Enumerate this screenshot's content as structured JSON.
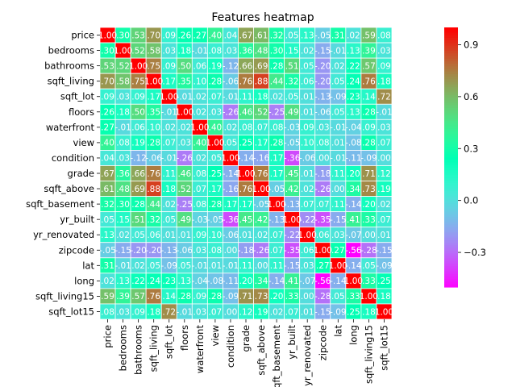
{
  "chart_data": {
    "type": "heatmap",
    "title": "Features heatmap",
    "features": [
      "price",
      "bedrooms",
      "bathrooms",
      "sqft_living",
      "sqft_lot",
      "floors",
      "waterfront",
      "view",
      "condition",
      "grade",
      "sqft_above",
      "sqft_basement",
      "yr_built",
      "yr_renovated",
      "zipcode",
      "lat",
      "long",
      "sqft_living15",
      "sqft_lot15"
    ],
    "matrix": [
      [
        1.0,
        0.3,
        0.53,
        0.7,
        0.09,
        0.26,
        0.27,
        0.4,
        0.04,
        0.67,
        0.61,
        0.32,
        0.05,
        0.13,
        -0.05,
        0.31,
        0.02,
        0.59,
        0.08
      ],
      [
        0.3,
        1.0,
        0.52,
        0.58,
        0.03,
        0.18,
        -0.01,
        0.08,
        0.03,
        0.36,
        0.48,
        0.3,
        0.15,
        0.02,
        -0.15,
        -0.01,
        0.13,
        0.39,
        0.03
      ],
      [
        0.53,
        0.52,
        1.0,
        0.75,
        0.09,
        0.5,
        0.06,
        0.19,
        -0.12,
        0.66,
        0.69,
        0.28,
        0.51,
        0.05,
        -0.2,
        0.02,
        0.22,
        0.57,
        0.09
      ],
      [
        0.7,
        0.58,
        0.75,
        1.0,
        0.17,
        0.35,
        0.1,
        0.28,
        -0.06,
        0.76,
        0.88,
        0.44,
        0.32,
        0.06,
        -0.2,
        0.05,
        0.24,
        0.76,
        0.18
      ],
      [
        0.09,
        0.03,
        0.09,
        0.17,
        1.0,
        -0.01,
        0.02,
        0.07,
        -0.01,
        0.11,
        0.18,
        0.02,
        0.05,
        0.01,
        -0.13,
        -0.09,
        0.23,
        0.14,
        0.72
      ],
      [
        0.26,
        0.18,
        0.5,
        0.35,
        -0.01,
        1.0,
        0.02,
        0.03,
        -0.26,
        0.46,
        0.52,
        -0.25,
        0.49,
        0.01,
        -0.06,
        0.05,
        0.13,
        0.28,
        -0.01
      ],
      [
        0.27,
        -0.01,
        0.06,
        0.1,
        0.02,
        0.02,
        1.0,
        0.4,
        0.02,
        0.08,
        0.07,
        0.08,
        -0.03,
        0.09,
        0.03,
        -0.01,
        -0.04,
        0.09,
        0.03
      ],
      [
        0.4,
        0.08,
        0.19,
        0.28,
        0.07,
        0.03,
        0.4,
        1.0,
        0.05,
        0.25,
        0.17,
        0.28,
        -0.05,
        0.1,
        0.08,
        0.01,
        -0.08,
        0.28,
        0.07
      ],
      [
        0.04,
        0.03,
        -0.12,
        -0.06,
        -0.01,
        -0.26,
        0.02,
        0.05,
        1.0,
        -0.14,
        -0.16,
        0.17,
        -0.36,
        -0.06,
        0.0,
        -0.01,
        -0.11,
        -0.09,
        -0.0
      ],
      [
        0.67,
        0.36,
        0.66,
        0.76,
        0.11,
        0.46,
        0.08,
        0.25,
        -0.14,
        1.0,
        0.76,
        0.17,
        0.45,
        0.01,
        -0.18,
        0.11,
        0.2,
        0.71,
        0.12
      ],
      [
        0.61,
        0.48,
        0.69,
        0.88,
        0.18,
        0.52,
        0.07,
        0.17,
        -0.16,
        0.76,
        1.0,
        -0.05,
        0.42,
        0.02,
        -0.26,
        0.0,
        0.34,
        0.73,
        0.19
      ],
      [
        0.32,
        0.3,
        0.28,
        0.44,
        0.02,
        -0.25,
        0.08,
        0.28,
        0.17,
        0.17,
        -0.05,
        1.0,
        -0.13,
        0.07,
        0.07,
        0.11,
        -0.14,
        0.2,
        0.02
      ],
      [
        0.05,
        0.15,
        0.51,
        0.32,
        0.05,
        0.49,
        -0.03,
        -0.05,
        -0.36,
        0.45,
        0.42,
        -0.13,
        1.0,
        -0.22,
        -0.35,
        -0.15,
        0.41,
        0.33,
        0.07
      ],
      [
        0.13,
        0.02,
        0.05,
        0.06,
        0.01,
        0.01,
        0.09,
        0.1,
        -0.06,
        0.01,
        0.02,
        0.07,
        -0.22,
        1.0,
        0.06,
        0.03,
        -0.07,
        0.0,
        0.01
      ],
      [
        -0.05,
        -0.15,
        -0.2,
        -0.2,
        -0.13,
        -0.06,
        0.03,
        0.08,
        0.0,
        -0.18,
        -0.26,
        0.07,
        -0.35,
        0.06,
        1.0,
        0.27,
        -0.56,
        -0.28,
        -0.15
      ],
      [
        0.31,
        -0.01,
        0.02,
        0.05,
        -0.09,
        0.05,
        -0.01,
        0.01,
        -0.01,
        0.11,
        0.0,
        0.11,
        -0.15,
        0.03,
        0.27,
        1.0,
        -0.14,
        0.05,
        -0.09
      ],
      [
        0.02,
        0.13,
        0.22,
        0.24,
        0.23,
        0.13,
        -0.04,
        -0.08,
        -0.11,
        0.2,
        0.34,
        -0.14,
        0.41,
        -0.07,
        -0.56,
        -0.14,
        1.0,
        0.33,
        0.25
      ],
      [
        0.59,
        0.39,
        0.57,
        0.76,
        0.14,
        0.28,
        0.09,
        0.28,
        -0.09,
        0.71,
        0.73,
        0.2,
        0.33,
        0.0,
        -0.28,
        0.05,
        0.33,
        1.0,
        0.18
      ],
      [
        0.08,
        0.03,
        0.09,
        0.18,
        0.72,
        -0.01,
        0.03,
        0.07,
        -0.0,
        0.12,
        0.19,
        0.02,
        0.07,
        0.01,
        -0.15,
        -0.09,
        0.25,
        0.18,
        1.0
      ]
    ],
    "vmin": -0.5,
    "vmax": 1.0,
    "colormap": "rainbow",
    "colorbar_ticks": [
      -0.3,
      0.0,
      0.3,
      0.6,
      0.9
    ],
    "cell_border_color": "#ffffff"
  }
}
